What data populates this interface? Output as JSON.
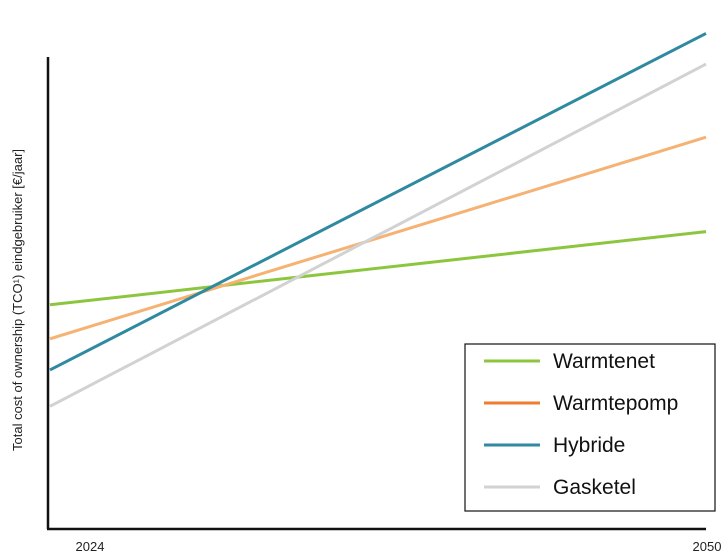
{
  "chart_data": {
    "type": "line",
    "ylabel": "Total cost of ownership (TCO¹) eindgebruiker [€/jaar]",
    "x_ticks": [
      "2024",
      "2050"
    ],
    "xlim": [
      2024,
      2050
    ],
    "ylim": [
      0,
      100
    ],
    "grid": false,
    "legend": "bottom-right",
    "series": [
      {
        "name": "Warmtenet",
        "color": "#8cc63f",
        "x": [
          2024,
          2050
        ],
        "values": [
          47.5,
          63
        ]
      },
      {
        "name": "Warmtepomp",
        "color": "#f5b272",
        "legend_color": "#ee7d31",
        "x": [
          2024,
          2050
        ],
        "values": [
          40.3,
          83
        ]
      },
      {
        "name": "Hybride",
        "color": "#2f8aa0",
        "x": [
          2024,
          2050
        ],
        "values": [
          33.7,
          105
        ]
      },
      {
        "name": "Gasketel",
        "color": "#d2d2d2",
        "x": [
          2024,
          2050
        ],
        "values": [
          26,
          98.5
        ]
      }
    ]
  }
}
